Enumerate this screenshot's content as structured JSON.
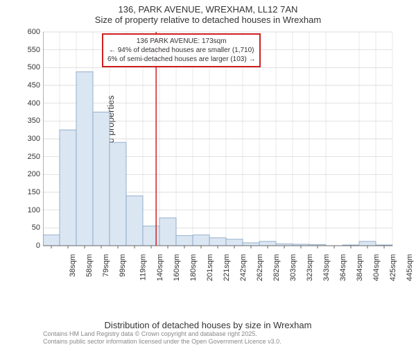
{
  "titles": {
    "main": "136, PARK AVENUE, WREXHAM, LL12 7AN",
    "sub": "Size of property relative to detached houses in Wrexham"
  },
  "axes": {
    "y_label": "Number of detached properties",
    "x_label": "Distribution of detached houses by size in Wrexham",
    "y_ticks": [
      0,
      50,
      100,
      150,
      200,
      250,
      300,
      350,
      400,
      450,
      500,
      550,
      600
    ],
    "x_tick_labels": [
      "38sqm",
      "58sqm",
      "79sqm",
      "99sqm",
      "119sqm",
      "140sqm",
      "160sqm",
      "180sqm",
      "201sqm",
      "221sqm",
      "242sqm",
      "262sqm",
      "282sqm",
      "303sqm",
      "323sqm",
      "343sqm",
      "364sqm",
      "384sqm",
      "404sqm",
      "425sqm",
      "445sqm"
    ],
    "ylim": [
      0,
      600
    ]
  },
  "histogram": {
    "type": "histogram",
    "bar_fill": "#dbe6f3",
    "bar_stroke": "#80a0c0",
    "values": [
      30,
      325,
      488,
      375,
      290,
      140,
      55,
      78,
      28,
      30,
      22,
      18,
      8,
      12,
      5,
      4,
      3,
      0,
      2,
      12,
      2
    ]
  },
  "marker": {
    "x_value": 173,
    "x_min": 38,
    "x_max": 455,
    "color": "#d02020"
  },
  "grid": {
    "color": "#d0d0d0",
    "axis_color": "#666666"
  },
  "annotation": {
    "line1": "136 PARK AVENUE: 173sqm",
    "line2": "← 94% of detached houses are smaller (1,710)",
    "line3": "6% of semi-detached houses are larger (103) →",
    "border_color": "#d02020"
  },
  "attribution": {
    "line1": "Contains HM Land Registry data © Crown copyright and database right 2025.",
    "line2": "Contains public sector information licensed under the Open Government Licence v3.0."
  }
}
